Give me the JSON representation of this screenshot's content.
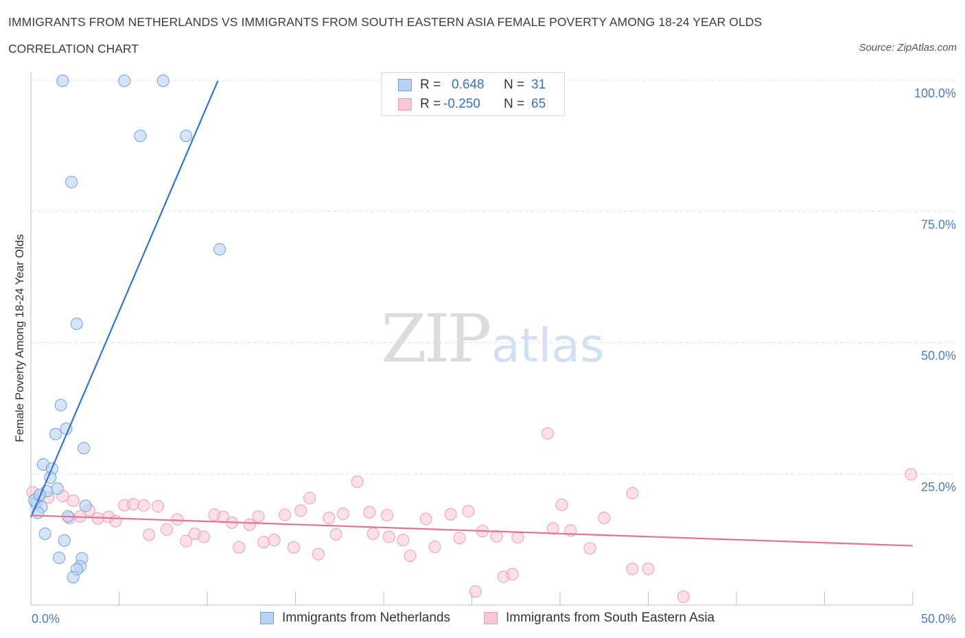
{
  "header": {
    "title": "IMMIGRANTS FROM NETHERLANDS VS IMMIGRANTS FROM SOUTH EASTERN ASIA FEMALE POVERTY AMONG 18-24 YEAR OLDS",
    "subtitle": "CORRELATION CHART",
    "source": "Source: ZipAtlas.com"
  },
  "legend": {
    "rows": [
      {
        "r_label": "R =",
        "r_value": "0.648",
        "n_label": "N =",
        "n_value": "31"
      },
      {
        "r_label": "R =",
        "r_value": "-0.250",
        "n_label": "N =",
        "n_value": "65"
      }
    ]
  },
  "bottom_legend": {
    "items": [
      {
        "label": "Immigrants from Netherlands"
      },
      {
        "label": "Immigrants from South Eastern Asia"
      }
    ]
  },
  "watermark": {
    "zip": "ZIP",
    "atlas": "atlas"
  },
  "colors": {
    "blue_fill": "#b9d2f3",
    "blue_stroke": "#6f9fe0",
    "blue_line": "#2f74d0",
    "pink_fill": "#f9c6d6",
    "pink_stroke": "#ee9bb5",
    "pink_line": "#e4709a",
    "grid": "#e1e1e1",
    "tick_text": "#4a7cc7"
  },
  "chart_data": {
    "type": "scatter",
    "title": "IMMIGRANTS FROM NETHERLANDS VS IMMIGRANTS FROM SOUTH EASTERN ASIA FEMALE POVERTY AMONG 18-24 YEAR OLDS",
    "xlabel": "",
    "ylabel": "Female Poverty Among 18-24 Year Olds",
    "xlim": [
      0,
      50
    ],
    "ylim": [
      0,
      100
    ],
    "x_ticks": [
      0,
      50
    ],
    "x_tick_labels": [
      "0.0%",
      "50.0%"
    ],
    "y_ticks": [
      25,
      50,
      75,
      100
    ],
    "y_tick_labels": [
      "25.0%",
      "50.0%",
      "75.0%",
      "100.0%"
    ],
    "grid": "horizontal dashed",
    "legend_placement": "top-center",
    "series": [
      {
        "name": "Immigrants from Netherlands",
        "R": 0.648,
        "N": 31,
        "trend": {
          "x": [
            0.0,
            10.6
          ],
          "y": [
            16.7,
            99.9
          ]
        },
        "points": [
          {
            "x": 1.8,
            "y": 99.9
          },
          {
            "x": 5.3,
            "y": 99.9
          },
          {
            "x": 7.5,
            "y": 99.9
          },
          {
            "x": 6.2,
            "y": 89.4
          },
          {
            "x": 8.8,
            "y": 89.4
          },
          {
            "x": 2.3,
            "y": 80.6
          },
          {
            "x": 10.7,
            "y": 67.8
          },
          {
            "x": 2.6,
            "y": 53.6
          },
          {
            "x": 1.7,
            "y": 38.1
          },
          {
            "x": 2.0,
            "y": 33.6
          },
          {
            "x": 1.4,
            "y": 32.6
          },
          {
            "x": 3.0,
            "y": 29.9
          },
          {
            "x": 0.7,
            "y": 26.8
          },
          {
            "x": 1.2,
            "y": 26.0
          },
          {
            "x": 1.1,
            "y": 24.3
          },
          {
            "x": 1.5,
            "y": 22.2
          },
          {
            "x": 0.9,
            "y": 21.7
          },
          {
            "x": 0.3,
            "y": 19.4
          },
          {
            "x": 0.6,
            "y": 18.7
          },
          {
            "x": 0.4,
            "y": 17.6
          },
          {
            "x": 3.1,
            "y": 18.9
          },
          {
            "x": 2.1,
            "y": 16.9
          },
          {
            "x": 0.8,
            "y": 13.6
          },
          {
            "x": 1.9,
            "y": 12.3
          },
          {
            "x": 1.6,
            "y": 9.0
          },
          {
            "x": 2.9,
            "y": 8.9
          },
          {
            "x": 2.8,
            "y": 7.4
          },
          {
            "x": 2.6,
            "y": 6.8
          },
          {
            "x": 2.4,
            "y": 5.3
          },
          {
            "x": 0.2,
            "y": 20.0
          },
          {
            "x": 0.5,
            "y": 21.0
          }
        ]
      },
      {
        "name": "Immigrants from South Eastern Asia",
        "R": -0.25,
        "N": 65,
        "trend": {
          "x": [
            0.0,
            50.0
          ],
          "y": [
            17.1,
            11.3
          ]
        },
        "points": [
          {
            "x": 0.1,
            "y": 21.5
          },
          {
            "x": 0.5,
            "y": 21.0
          },
          {
            "x": 1.0,
            "y": 20.5
          },
          {
            "x": 1.8,
            "y": 20.8
          },
          {
            "x": 2.4,
            "y": 19.9
          },
          {
            "x": 2.2,
            "y": 16.6
          },
          {
            "x": 2.8,
            "y": 16.9
          },
          {
            "x": 3.3,
            "y": 18.1
          },
          {
            "x": 3.8,
            "y": 16.5
          },
          {
            "x": 4.4,
            "y": 16.8
          },
          {
            "x": 4.8,
            "y": 16.0
          },
          {
            "x": 5.3,
            "y": 19.0
          },
          {
            "x": 5.8,
            "y": 19.2
          },
          {
            "x": 6.4,
            "y": 19.0
          },
          {
            "x": 7.2,
            "y": 18.8
          },
          {
            "x": 6.7,
            "y": 13.4
          },
          {
            "x": 7.7,
            "y": 14.4
          },
          {
            "x": 8.3,
            "y": 16.3
          },
          {
            "x": 8.8,
            "y": 12.2
          },
          {
            "x": 9.3,
            "y": 13.6
          },
          {
            "x": 9.8,
            "y": 13.0
          },
          {
            "x": 10.4,
            "y": 17.2
          },
          {
            "x": 10.9,
            "y": 16.8
          },
          {
            "x": 11.4,
            "y": 15.7
          },
          {
            "x": 11.8,
            "y": 11.0
          },
          {
            "x": 12.4,
            "y": 15.3
          },
          {
            "x": 12.9,
            "y": 16.9
          },
          {
            "x": 13.2,
            "y": 12.0
          },
          {
            "x": 13.8,
            "y": 12.4
          },
          {
            "x": 14.4,
            "y": 17.2
          },
          {
            "x": 14.9,
            "y": 11.0
          },
          {
            "x": 15.3,
            "y": 18.0
          },
          {
            "x": 15.8,
            "y": 20.4
          },
          {
            "x": 16.3,
            "y": 9.7
          },
          {
            "x": 16.9,
            "y": 16.6
          },
          {
            "x": 17.3,
            "y": 13.5
          },
          {
            "x": 17.7,
            "y": 17.4
          },
          {
            "x": 18.5,
            "y": 23.5
          },
          {
            "x": 19.2,
            "y": 17.7
          },
          {
            "x": 19.4,
            "y": 13.6
          },
          {
            "x": 20.3,
            "y": 13.0
          },
          {
            "x": 20.2,
            "y": 17.1
          },
          {
            "x": 21.1,
            "y": 12.4
          },
          {
            "x": 21.5,
            "y": 9.4
          },
          {
            "x": 22.4,
            "y": 16.4
          },
          {
            "x": 22.9,
            "y": 11.1
          },
          {
            "x": 23.8,
            "y": 17.3
          },
          {
            "x": 24.3,
            "y": 12.8
          },
          {
            "x": 24.8,
            "y": 17.9
          },
          {
            "x": 25.6,
            "y": 14.1
          },
          {
            "x": 25.2,
            "y": 2.6
          },
          {
            "x": 26.4,
            "y": 13.1
          },
          {
            "x": 26.8,
            "y": 5.4
          },
          {
            "x": 27.3,
            "y": 5.9
          },
          {
            "x": 27.6,
            "y": 12.9
          },
          {
            "x": 29.3,
            "y": 32.7
          },
          {
            "x": 29.6,
            "y": 14.6
          },
          {
            "x": 30.1,
            "y": 19.1
          },
          {
            "x": 30.6,
            "y": 14.2
          },
          {
            "x": 31.7,
            "y": 10.8
          },
          {
            "x": 32.5,
            "y": 16.6
          },
          {
            "x": 34.1,
            "y": 21.3
          },
          {
            "x": 34.1,
            "y": 6.9
          },
          {
            "x": 35.0,
            "y": 6.9
          },
          {
            "x": 37.0,
            "y": 1.6
          },
          {
            "x": 49.9,
            "y": 24.9
          }
        ]
      }
    ]
  }
}
